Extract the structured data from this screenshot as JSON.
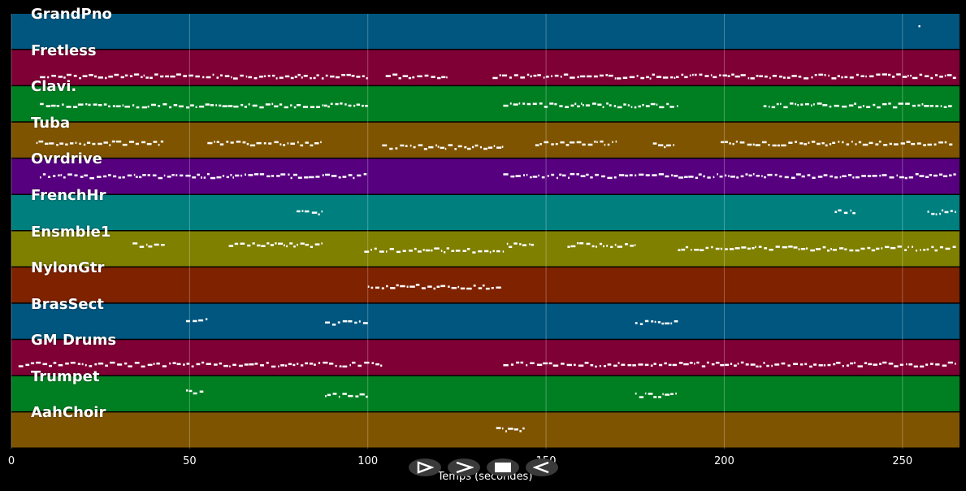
{
  "tracks": [
    {
      "name": "GrandPno",
      "color": "#00567f"
    },
    {
      "name": "Fretless",
      "color": "#7f0035"
    },
    {
      "name": "Clavi.",
      "color": "#007f22"
    },
    {
      "name": "Tuba",
      "color": "#7f5400"
    },
    {
      "name": "Ovrdrive",
      "color": "#57007f"
    },
    {
      "name": "FrenchHr",
      "color": "#007f7f"
    },
    {
      "name": "Ensmble1",
      "color": "#7f7f00"
    },
    {
      "name": "NylonGtr",
      "color": "#7f2200"
    },
    {
      "name": "BrasSect",
      "color": "#00567f"
    },
    {
      "name": "GM Drums",
      "color": "#7f0035"
    },
    {
      "name": "Trumpet",
      "color": "#007f22"
    },
    {
      "name": "AahChoir",
      "color": "#7f5400"
    }
  ],
  "x_axis": {
    "label": "Temps (secondes)",
    "min": 0,
    "max": 266,
    "ticks": [
      0,
      50,
      100,
      150,
      200,
      250
    ]
  },
  "controls": [
    {
      "name": "play-outline-icon"
    },
    {
      "name": "forward-chevron-icon"
    },
    {
      "name": "stop-square-icon"
    },
    {
      "name": "rewind-icon"
    }
  ],
  "note_segments": {
    "GrandPno": [
      [
        254.5,
        255,
        0.3
      ]
    ],
    "Fretless": [
      [
        8,
        100,
        0.7
      ],
      [
        105,
        122,
        0.7
      ],
      [
        135,
        265,
        0.7
      ]
    ],
    "Clavi.": [
      [
        8,
        100,
        0.5
      ],
      [
        138,
        187,
        0.5
      ],
      [
        211,
        264,
        0.5
      ]
    ],
    "Tuba": [
      [
        7,
        43,
        0.55
      ],
      [
        55,
        87,
        0.55
      ],
      [
        104,
        138,
        0.65
      ],
      [
        147,
        170,
        0.55
      ],
      [
        180,
        186,
        0.6
      ],
      [
        199,
        264,
        0.55
      ]
    ],
    "Ovrdrive": [
      [
        8,
        100,
        0.45
      ],
      [
        138,
        265,
        0.45
      ]
    ],
    "FrenchHr": [
      [
        80,
        87,
        0.45
      ],
      [
        231,
        237,
        0.45
      ],
      [
        257,
        265,
        0.45
      ]
    ],
    "Ensmble1": [
      [
        34,
        43,
        0.35
      ],
      [
        61,
        87,
        0.35
      ],
      [
        99,
        138,
        0.5
      ],
      [
        139,
        147,
        0.35
      ],
      [
        156,
        175,
        0.35
      ],
      [
        187,
        265,
        0.45
      ]
    ],
    "NylonGtr": [
      [
        100,
        138,
        0.5
      ]
    ],
    "BrasSect": [
      [
        49,
        55,
        0.45
      ],
      [
        88,
        100,
        0.5
      ],
      [
        175,
        187,
        0.5
      ]
    ],
    "GM Drums": [
      [
        2,
        104,
        0.65
      ],
      [
        138,
        265,
        0.65
      ]
    ],
    "Trumpet": [
      [
        49,
        54,
        0.4
      ],
      [
        88,
        100,
        0.5
      ],
      [
        175,
        187,
        0.5
      ]
    ],
    "AahChoir": [
      [
        136,
        144,
        0.45
      ]
    ]
  }
}
